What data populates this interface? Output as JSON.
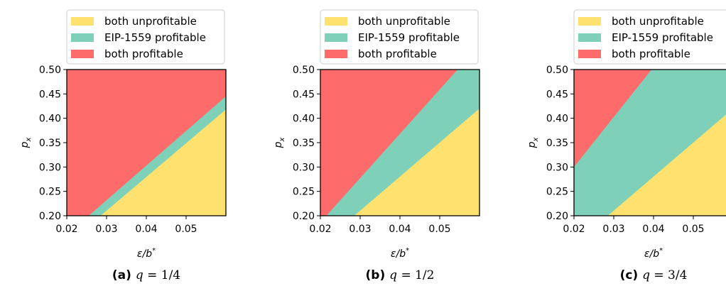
{
  "colors": {
    "both_unprofitable": "#FEE16E",
    "eip_profitable": "#7ED1B8",
    "both_profitable": "#FE6B6B"
  },
  "chart_data": [
    {
      "type": "area",
      "caption_letter": "(a)",
      "caption_var": "q",
      "caption_eq": " = 1/4",
      "xlabel": "ε/b*",
      "ylabel": "p_x",
      "xlim": [
        0.02,
        0.06
      ],
      "ylim": [
        0.2,
        0.5
      ],
      "x_ticks": [
        0.02,
        0.03,
        0.04,
        0.05
      ],
      "x_tick_labels": [
        "0.02",
        "0.03",
        "0.04",
        "0.05"
      ],
      "y_ticks": [
        0.2,
        0.25,
        0.3,
        0.35,
        0.4,
        0.45,
        0.5
      ],
      "y_tick_labels": [
        "0.20",
        "0.25",
        "0.30",
        "0.35",
        "0.40",
        "0.45",
        "0.50"
      ],
      "legend": [
        "both unprofitable",
        "EIP-1559 profitable",
        "both profitable"
      ],
      "legend_position": "top",
      "boundaries": {
        "red_lower": [
          [
            0.02,
            0.2
          ],
          [
            0.0255,
            0.2
          ],
          [
            0.06,
            0.445
          ],
          [
            0.06,
            0.5
          ],
          [
            0.02,
            0.5
          ]
        ],
        "yellow_upper": [
          [
            0.0285,
            0.2
          ],
          [
            0.06,
            0.418
          ],
          [
            0.06,
            0.2
          ]
        ]
      }
    },
    {
      "type": "area",
      "caption_letter": "(b)",
      "caption_var": "q",
      "caption_eq": " = 1/2",
      "xlabel": "ε/b*",
      "ylabel": "p_x",
      "xlim": [
        0.02,
        0.06
      ],
      "ylim": [
        0.2,
        0.5
      ],
      "x_ticks": [
        0.02,
        0.03,
        0.04,
        0.05
      ],
      "x_tick_labels": [
        "0.02",
        "0.03",
        "0.04",
        "0.05"
      ],
      "y_ticks": [
        0.2,
        0.25,
        0.3,
        0.35,
        0.4,
        0.45,
        0.5
      ],
      "y_tick_labels": [
        "0.20",
        "0.25",
        "0.30",
        "0.35",
        "0.40",
        "0.45",
        "0.50"
      ],
      "legend": [
        "both unprofitable",
        "EIP-1559 profitable",
        "both profitable"
      ],
      "legend_position": "top",
      "boundaries": {
        "red_lower": [
          [
            0.02,
            0.2
          ],
          [
            0.0215,
            0.2
          ],
          [
            0.0545,
            0.5
          ],
          [
            0.02,
            0.5
          ]
        ],
        "yellow_upper": [
          [
            0.0285,
            0.2
          ],
          [
            0.06,
            0.42
          ],
          [
            0.06,
            0.2
          ]
        ]
      }
    },
    {
      "type": "area",
      "caption_letter": "(c)",
      "caption_var": "q",
      "caption_eq": " = 3/4",
      "xlabel": "ε/b*",
      "ylabel": "p_x",
      "xlim": [
        0.02,
        0.06
      ],
      "ylim": [
        0.2,
        0.5
      ],
      "x_ticks": [
        0.02,
        0.03,
        0.04,
        0.05
      ],
      "x_tick_labels": [
        "0.02",
        "0.03",
        "0.04",
        "0.05"
      ],
      "y_ticks": [
        0.2,
        0.25,
        0.3,
        0.35,
        0.4,
        0.45,
        0.5
      ],
      "y_tick_labels": [
        "0.20",
        "0.25",
        "0.30",
        "0.35",
        "0.40",
        "0.45",
        "0.50"
      ],
      "legend": [
        "both unprofitable",
        "EIP-1559 profitable",
        "both profitable"
      ],
      "legend_position": "top",
      "boundaries": {
        "red_lower": [
          [
            0.02,
            0.3
          ],
          [
            0.0395,
            0.5
          ],
          [
            0.02,
            0.5
          ]
        ],
        "yellow_upper": [
          [
            0.0285,
            0.2
          ],
          [
            0.06,
            0.42
          ],
          [
            0.06,
            0.2
          ]
        ]
      }
    }
  ]
}
